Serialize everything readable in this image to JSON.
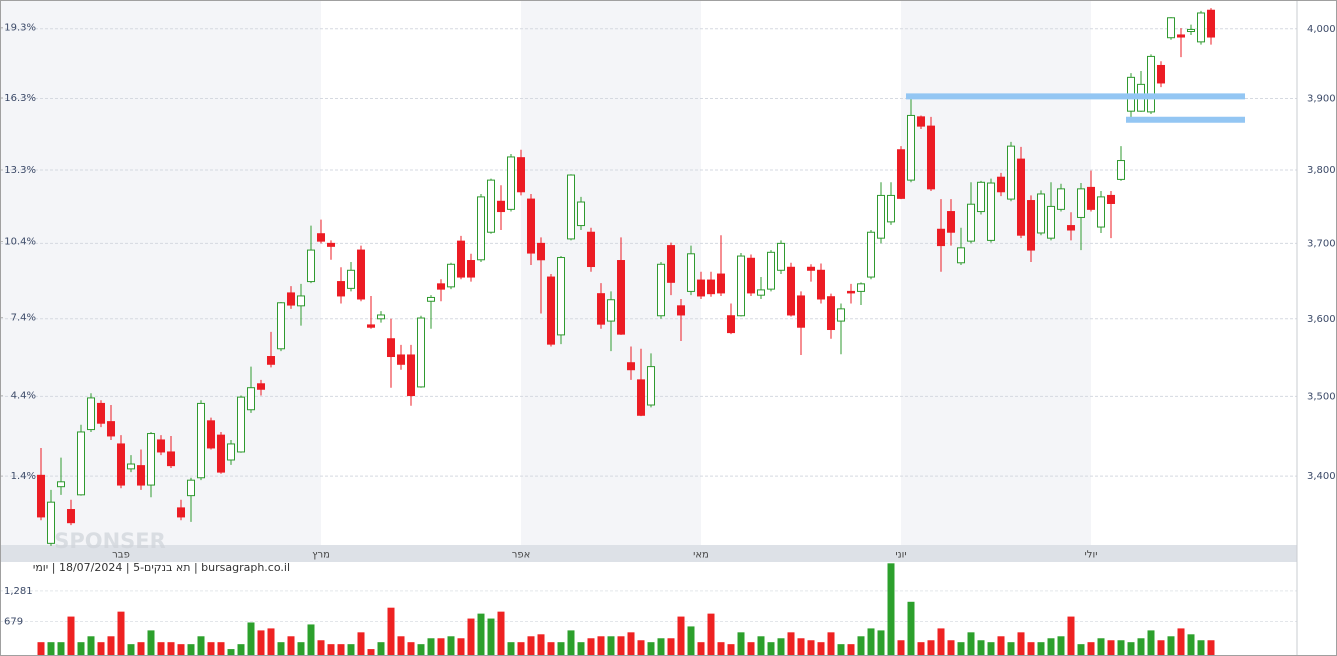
{
  "chart_data": {
    "type": "candlestick",
    "categories": [
      null,
      null,
      null,
      null,
      null,
      null,
      null,
      null,
      "פבר",
      null,
      null,
      null,
      null,
      null,
      null,
      null,
      null,
      null,
      null,
      null,
      null,
      null,
      null,
      null,
      null,
      null,
      null,
      null,
      "מרץ",
      null,
      null,
      null,
      null,
      null,
      null,
      null,
      null,
      null,
      null,
      null,
      null,
      null,
      null,
      null,
      null,
      null,
      null,
      null,
      "אפר",
      null,
      null,
      null,
      null,
      null,
      null,
      null,
      null,
      null,
      null,
      null,
      null,
      null,
      null,
      null,
      null,
      null,
      "מאי",
      null,
      null,
      null,
      null,
      null,
      null,
      null,
      null,
      null,
      null,
      null,
      null,
      null,
      null,
      null,
      null,
      null,
      null,
      null,
      "יוני",
      null,
      null,
      null,
      null,
      null,
      null,
      null,
      null,
      null,
      null,
      null,
      null,
      null,
      null,
      null,
      null,
      null,
      null,
      "יולי",
      null,
      null,
      null,
      null,
      null,
      null,
      null,
      null,
      null,
      null,
      null,
      null
    ],
    "open": [
      3401,
      3318,
      3387,
      3359,
      3377,
      3458,
      3491,
      3468,
      3440,
      3409,
      3413,
      3389,
      3445,
      3430,
      3361,
      3376,
      3398,
      3469,
      3451,
      3420,
      3430,
      3483,
      3516,
      3551,
      3561,
      3634,
      3617,
      3649,
      3713,
      3700,
      3649,
      3640,
      3691,
      3592,
      3600,
      3574,
      3553,
      3553,
      3512,
      3623,
      3646,
      3642,
      3703,
      3677,
      3678,
      3715,
      3757,
      3746,
      3817,
      3760,
      3700,
      3655,
      3579,
      3706,
      3724,
      3715,
      3633,
      3597,
      3677,
      3543,
      3521,
      3489,
      3604,
      3697,
      3617,
      3636,
      3651,
      3651,
      3659,
      3604,
      3604,
      3680,
      3631,
      3639,
      3664,
      3668,
      3630,
      3668,
      3664,
      3629,
      3597,
      3636,
      3636,
      3655,
      3707,
      3729,
      3828,
      3786,
      3874,
      3861,
      3719,
      3743,
      3674,
      3703,
      3743,
      3704,
      3790,
      3760,
      3815,
      3758,
      3714,
      3707,
      3746,
      3724,
      3735,
      3776,
      3722,
      3765,
      3787,
      3882,
      3882,
      3881,
      3947,
      3987,
      3991,
      3996,
      3981,
      4027
    ],
    "high": [
      3435,
      3383,
      3423,
      3371,
      3464,
      3504,
      3495,
      3489,
      3451,
      3426,
      3433,
      3455,
      3451,
      3450,
      3371,
      3398,
      3495,
      3473,
      3455,
      3445,
      3501,
      3538,
      3521,
      3583,
      3622,
      3643,
      3646,
      3724,
      3732,
      3704,
      3668,
      3675,
      3697,
      3630,
      3610,
      3600,
      3566,
      3566,
      3604,
      3631,
      3652,
      3674,
      3710,
      3686,
      3767,
      3788,
      3779,
      3822,
      3828,
      3767,
      3708,
      3659,
      3683,
      3794,
      3763,
      3721,
      3647,
      3636,
      3708,
      3564,
      3561,
      3555,
      3675,
      3701,
      3626,
      3697,
      3662,
      3662,
      3711,
      3620,
      3687,
      3685,
      3655,
      3691,
      3704,
      3674,
      3636,
      3672,
      3673,
      3633,
      3620,
      3646,
      3648,
      3718,
      3783,
      3783,
      3833,
      3907,
      3876,
      3874,
      3760,
      3760,
      3721,
      3783,
      3785,
      3788,
      3796,
      3839,
      3832,
      3765,
      3772,
      3783,
      3781,
      3742,
      3782,
      3799,
      3771,
      3771,
      3833,
      3936,
      3939,
      3963,
      3953,
      4017,
      4001,
      4006,
      4026,
      4030
    ],
    "low": [
      3346,
      3315,
      3377,
      3340,
      3376,
      3455,
      3461,
      3445,
      3385,
      3405,
      3383,
      3374,
      3426,
      3410,
      3346,
      3344,
      3395,
      3433,
      3403,
      3414,
      3429,
      3479,
      3501,
      3537,
      3558,
      3613,
      3591,
      3647,
      3700,
      3678,
      3620,
      3636,
      3623,
      3587,
      3595,
      3511,
      3534,
      3488,
      3511,
      3587,
      3623,
      3639,
      3652,
      3649,
      3675,
      3713,
      3718,
      3743,
      3765,
      3671,
      3607,
      3564,
      3567,
      3704,
      3718,
      3662,
      3587,
      3558,
      3579,
      3521,
      3475,
      3486,
      3600,
      3631,
      3571,
      3631,
      3626,
      3629,
      3630,
      3580,
      3603,
      3630,
      3626,
      3636,
      3659,
      3603,
      3553,
      3649,
      3620,
      3574,
      3554,
      3620,
      3618,
      3652,
      3700,
      3725,
      3760,
      3783,
      3857,
      3771,
      3662,
      3697,
      3671,
      3700,
      3739,
      3701,
      3764,
      3757,
      3707,
      3675,
      3711,
      3704,
      3743,
      3704,
      3691,
      3743,
      3714,
      3707,
      3785,
      3871,
      3881,
      3878,
      3916,
      3984,
      3959,
      3991,
      3977,
      3977
    ],
    "close": [
      3350,
      3368,
      3393,
      3343,
      3455,
      3498,
      3466,
      3450,
      3389,
      3415,
      3389,
      3453,
      3430,
      3413,
      3350,
      3395,
      3491,
      3435,
      3405,
      3440,
      3499,
      3511,
      3509,
      3541,
      3621,
      3618,
      3630,
      3691,
      3703,
      3696,
      3630,
      3664,
      3626,
      3589,
      3605,
      3551,
      3541,
      3501,
      3601,
      3628,
      3639,
      3672,
      3655,
      3655,
      3763,
      3786,
      3743,
      3818,
      3770,
      3687,
      3678,
      3567,
      3681,
      3793,
      3756,
      3669,
      3593,
      3625,
      3580,
      3534,
      3476,
      3538,
      3672,
      3648,
      3605,
      3686,
      3630,
      3633,
      3634,
      3582,
      3683,
      3634,
      3638,
      3688,
      3700,
      3605,
      3589,
      3664,
      3626,
      3586,
      3613,
      3634,
      3646,
      3715,
      3765,
      3765,
      3761,
      3876,
      3861,
      3774,
      3697,
      3715,
      3694,
      3753,
      3783,
      3782,
      3770,
      3833,
      3711,
      3691,
      3767,
      3750,
      3774,
      3718,
      3774,
      3746,
      3763,
      3754,
      3813,
      3930,
      3920,
      3960,
      3922,
      4016,
      3988,
      3999,
      4023,
      3988
    ],
    "volume": [
      272,
      272,
      272,
      776,
      272,
      388,
      272,
      388,
      873,
      233,
      272,
      504,
      272,
      272,
      233,
      233,
      388,
      272,
      272,
      136,
      233,
      660,
      504,
      543,
      272,
      388,
      272,
      621,
      310,
      233,
      233,
      233,
      466,
      136,
      272,
      951,
      388,
      272,
      233,
      349,
      349,
      388,
      349,
      737,
      834,
      737,
      873,
      272,
      272,
      388,
      427,
      272,
      272,
      504,
      272,
      349,
      388,
      388,
      388,
      466,
      310,
      272,
      349,
      349,
      776,
      582,
      272,
      834,
      272,
      233,
      466,
      272,
      388,
      272,
      349,
      466,
      349,
      310,
      272,
      466,
      233,
      233,
      388,
      543,
      504,
      1824,
      310,
      1067,
      272,
      310,
      543,
      310,
      272,
      466,
      310,
      272,
      388,
      272,
      466,
      272,
      272,
      349,
      388,
      776,
      233,
      272,
      349,
      310,
      310,
      272,
      349,
      504,
      310,
      388,
      543,
      427,
      310,
      310
    ],
    "up_color": "#2f9a2f",
    "down_color": "#ec1c24",
    "ylim": [
      3316,
      4042
    ],
    "log_scale": true,
    "yticks": [
      {
        "value": 3400,
        "label": "3,400"
      },
      {
        "value": 3500,
        "label": "3,500"
      },
      {
        "value": 3600,
        "label": "3,600"
      },
      {
        "value": 3700,
        "label": "3,700"
      },
      {
        "value": 3800,
        "label": "3,800"
      },
      {
        "value": 3900,
        "label": "3,900"
      },
      {
        "value": 4000,
        "label": "4,000"
      }
    ],
    "y2lim": [
      -1.1,
      20.5
    ],
    "y2ticks": [
      {
        "value": 1.4,
        "label": "1.4%"
      },
      {
        "value": 4.4,
        "label": "4.4%"
      },
      {
        "value": 7.4,
        "label": "7.4%"
      },
      {
        "value": 10.4,
        "label": "10.4%"
      },
      {
        "value": 13.3,
        "label": "13.3%"
      },
      {
        "value": 16.3,
        "label": "16.3%"
      },
      {
        "value": 19.3,
        "label": "19.3%"
      }
    ],
    "volume_lim": [
      0,
      1850
    ],
    "volume_ticks": [
      679,
      {
        "value": 1281,
        "label": "1,281"
      }
    ],
    "levels": [
      {
        "value": 3903,
        "start": 87
      },
      {
        "value": 3870,
        "start": 109
      }
    ],
    "level_color": "#93c6f3",
    "grid": true,
    "caption": "bursagraph.co.il | תא בנקים-5 | 18/07/2024 | יומי",
    "watermark": "SPONSER"
  }
}
